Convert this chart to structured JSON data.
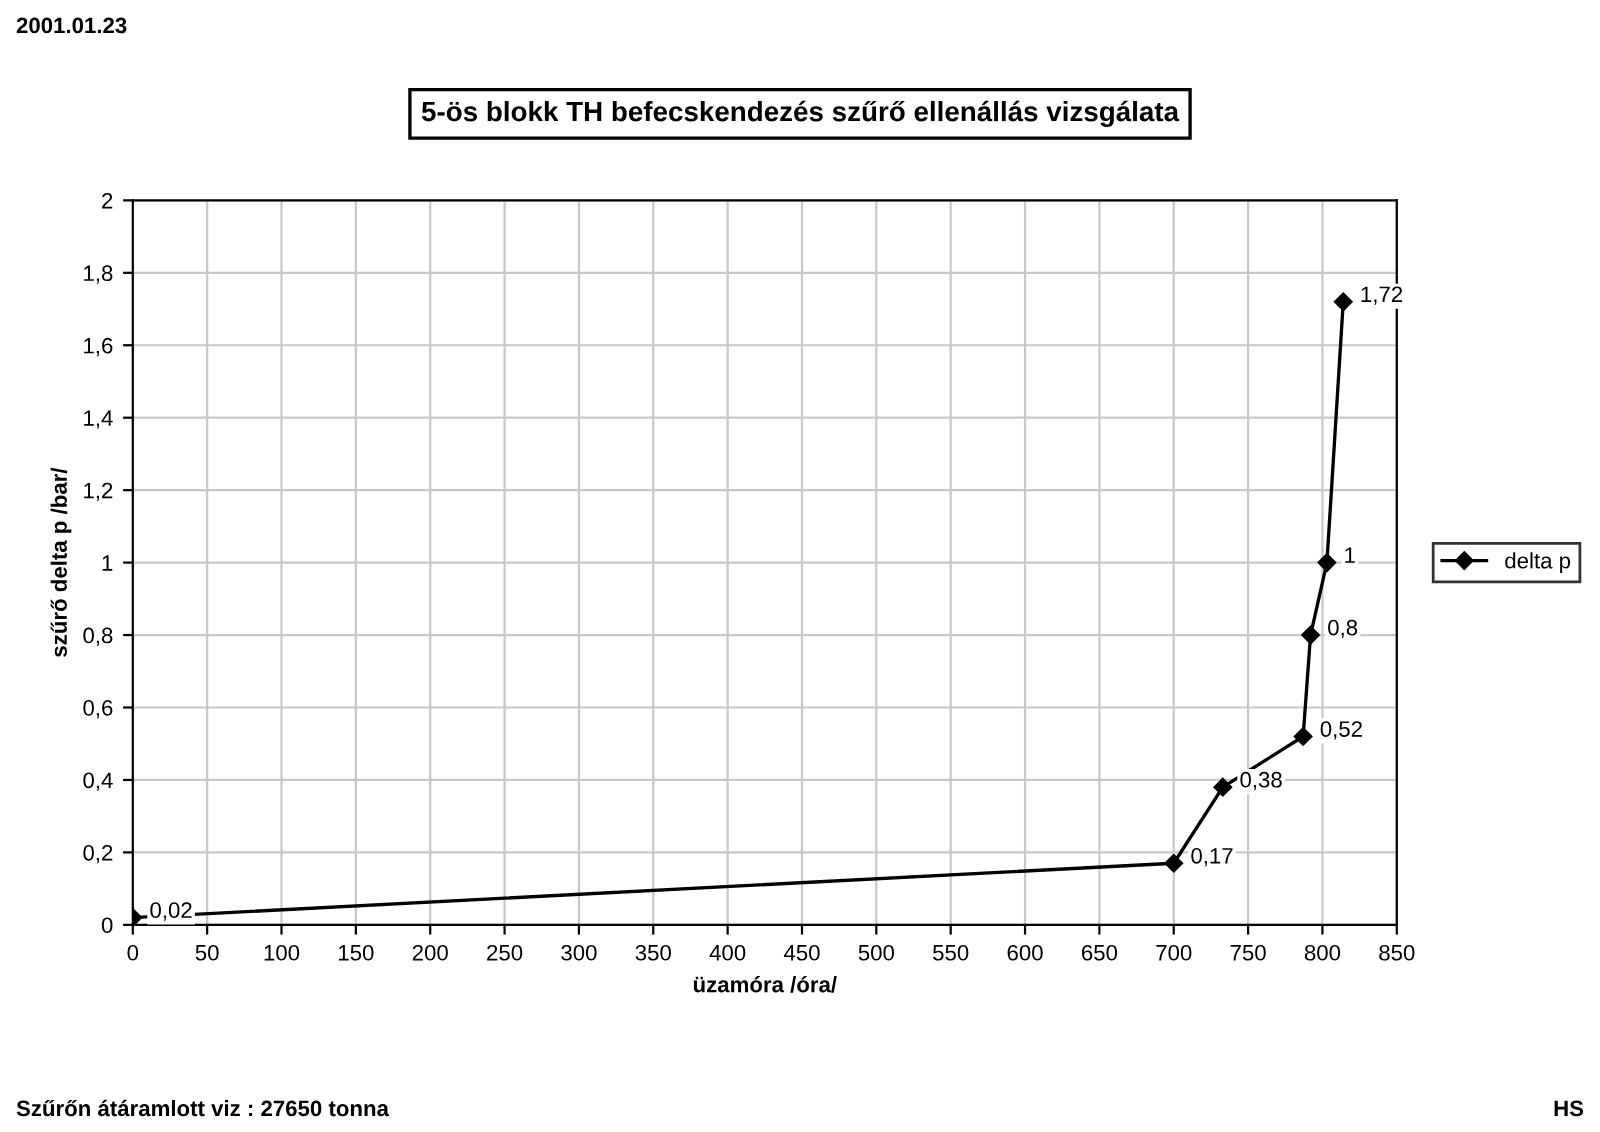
{
  "chart_data": {
    "type": "line",
    "title": "5-ös blokk TH befecskendezés szűrő ellenállás vizsgálata",
    "xlabel": "üzamóra /óra/",
    "ylabel": "szűrő delta p /bar/",
    "x": [
      0,
      700,
      733,
      787,
      792,
      803,
      814
    ],
    "series": [
      {
        "name": "delta p",
        "color": "#000000",
        "values": [
          0.02,
          0.17,
          0.38,
          0.52,
          0.8,
          1,
          1.72
        ],
        "value_labels": [
          "0,02",
          "0,17",
          "0,38",
          "0,52",
          "0,8",
          "1",
          "1,72"
        ]
      }
    ],
    "xlim": [
      0,
      850
    ],
    "xticks": [
      0,
      50,
      100,
      150,
      200,
      250,
      300,
      350,
      400,
      450,
      500,
      550,
      600,
      650,
      700,
      750,
      800,
      850
    ],
    "ylim": [
      0,
      2
    ],
    "yticks": [
      0,
      {
        "value": 0.2,
        "label": "0,2"
      },
      {
        "value": 0.4,
        "label": "0,4"
      },
      {
        "value": 0.6,
        "label": "0,6"
      },
      {
        "value": 0.8,
        "label": "0,8"
      },
      1,
      {
        "value": 1.2,
        "label": "1,2"
      },
      {
        "value": 1.4,
        "label": "1,4"
      },
      {
        "value": 1.6,
        "label": "1,6"
      },
      {
        "value": 1.8,
        "label": "1,8"
      },
      2
    ],
    "grid": true,
    "legend": "right",
    "marker": "diamond",
    "line_style": "solid",
    "annotations": [
      "2001.01.23",
      "Szűrőn átáramlott viz : 27650 tonna",
      "HS"
    ]
  }
}
